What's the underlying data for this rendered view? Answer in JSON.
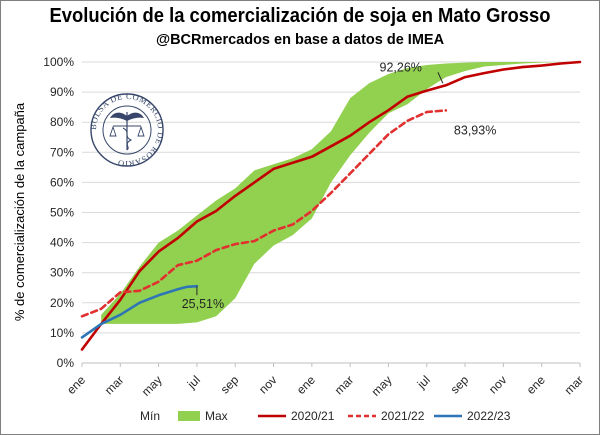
{
  "chart_data": {
    "type": "line",
    "title": "Evolución de la comercialización de soja en Mato Grosso",
    "subtitle": "@BCRmercados en base a datos de IMEA",
    "ylabel": "% de comercialización de la campaña",
    "xlabel": "",
    "ylim": [
      0,
      100
    ],
    "yticks": [
      "0%",
      "10%",
      "20%",
      "30%",
      "40%",
      "50%",
      "60%",
      "70%",
      "80%",
      "90%",
      "100%"
    ],
    "x_tick_labels": [
      "ene",
      "mar",
      "may",
      "jul",
      "sep",
      "nov",
      "ene",
      "mar",
      "may",
      "jul",
      "sep",
      "nov",
      "ene",
      "mar"
    ],
    "x_range_months": [
      0,
      26
    ],
    "band": {
      "min_name": "Mín",
      "max_name": "Max",
      "color": "#92d050",
      "x": [
        1,
        2,
        3,
        4,
        5,
        6,
        7,
        8,
        9,
        10,
        11,
        12,
        13,
        14,
        15,
        16,
        17,
        18,
        19,
        20,
        21,
        22,
        23,
        24,
        25,
        26
      ],
      "min": [
        13,
        13,
        13,
        13,
        13,
        13.5,
        15.5,
        21.5,
        33,
        39,
        42.5,
        48,
        60,
        69,
        76.5,
        83,
        86,
        91,
        95,
        97,
        98.5,
        99,
        99.5,
        99.8,
        100,
        100
      ],
      "max": [
        16,
        23,
        32,
        40,
        44,
        49,
        54,
        58,
        64,
        66,
        68,
        71,
        77,
        88,
        93,
        96,
        98,
        99,
        99.5,
        99.8,
        100,
        100,
        100,
        100,
        100,
        100
      ]
    },
    "series": [
      {
        "name": "2020/21",
        "color": "#c00000",
        "dash": "solid",
        "x": [
          0,
          1,
          2,
          3,
          4,
          5,
          6,
          7,
          8,
          9,
          10,
          11,
          12,
          13,
          14,
          15,
          16,
          17,
          18,
          19,
          20,
          21,
          22,
          23,
          24,
          25,
          26
        ],
        "values": [
          4.5,
          13,
          21,
          30.5,
          37,
          41.5,
          47,
          50.5,
          55.5,
          60,
          64.5,
          66.5,
          68.5,
          72,
          75.5,
          80,
          84,
          88.5,
          90.5,
          92.26,
          95,
          96.3,
          97.5,
          98.3,
          98.8,
          99.5,
          100
        ]
      },
      {
        "name": "2021/22",
        "color": "#e03030",
        "dash": "dashed",
        "x": [
          0,
          1,
          2,
          3,
          4,
          5,
          6,
          7,
          8,
          9,
          10,
          11,
          12,
          13,
          14,
          15,
          16,
          17,
          18,
          19
        ],
        "values": [
          15.5,
          18,
          23.5,
          24,
          27,
          32.5,
          34,
          37.5,
          39.5,
          40.5,
          44,
          46,
          50.5,
          56.5,
          63,
          69.5,
          76,
          80.5,
          83.4,
          83.93
        ]
      },
      {
        "name": "2022/23",
        "color": "#2e75b6",
        "dash": "solid",
        "x": [
          0,
          1,
          2,
          3,
          4,
          5,
          5.5,
          6
        ],
        "values": [
          8.5,
          13,
          16,
          20,
          22.5,
          24.5,
          25.3,
          25.51
        ]
      }
    ],
    "annotations": [
      {
        "text": "92,26%",
        "series": "2020/21",
        "x": 19,
        "y": 92.26
      },
      {
        "text": "83,93%",
        "series": "2021/22",
        "x": 19,
        "y": 83.93
      },
      {
        "text": "25,51%",
        "series": "2022/23",
        "x": 6,
        "y": 25.51
      }
    ],
    "legend": {
      "placement": "bottom",
      "entries": [
        {
          "label": "Mín",
          "kind": "none"
        },
        {
          "label": "Max",
          "kind": "area",
          "color": "#92d050"
        },
        {
          "label": "2020/21",
          "kind": "line",
          "color": "#c00000",
          "dash": "solid"
        },
        {
          "label": "2021/22",
          "kind": "line",
          "color": "#e03030",
          "dash": "dashed"
        },
        {
          "label": "2022/23",
          "kind": "line",
          "color": "#2e75b6",
          "dash": "solid"
        }
      ]
    },
    "grid": true,
    "watermark": "BOLSA DE COMERCIO DE ROSARIO"
  },
  "colors": {
    "grid": "#d9d9d9",
    "axis": "#bfbfbf",
    "text": "#262626",
    "seal": "#22335a"
  }
}
